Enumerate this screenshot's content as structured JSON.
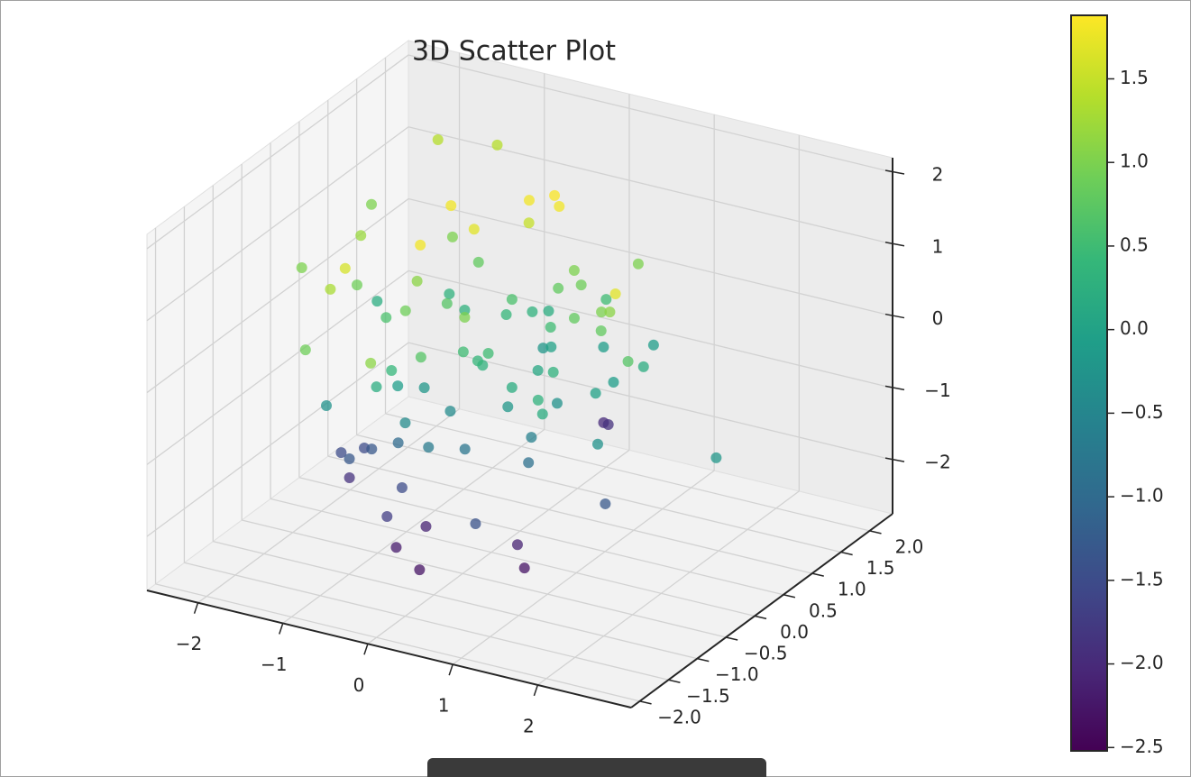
{
  "chart_data": {
    "type": "scatter3d",
    "title": "3D Scatter Plot",
    "x": [
      -1.84,
      -1.25,
      0.04,
      0.25,
      0.38,
      -0.59,
      -2.0,
      0.05,
      -0.19,
      -1.55,
      -0.89,
      -0.39,
      -1.86,
      -0.95,
      -0.53,
      1.08,
      0.59,
      -0.59,
      -1.09,
      -1.25,
      0.49,
      0.74,
      1.84,
      -0.84,
      -1.48,
      0.04,
      -0.4,
      0.79,
      -0.51,
      -0.51,
      -0.86,
      0.18,
      0.0,
      0.11,
      0.16,
      0.99,
      1.33,
      1.49,
      0.63,
      1.38,
      -0.93,
      0.15,
      0.39,
      0.21,
      0.44,
      0.01,
      0.82,
      1.24,
      -0.02,
      0.3,
      0.31,
      1.9,
      1.67,
      -0.35,
      0.69,
      1.02,
      -0.46,
      -0.54,
      -0.37,
      0.75,
      1.33,
      -1.11,
      1.22,
      0.91,
      1.39,
      -0.03,
      0.6,
      1.34,
      -0.29,
      0.09,
      0.24,
      0.83,
      -0.63,
      -0.05,
      0.21,
      1.76,
      3.06,
      -1.45,
      -1.3,
      -1.05,
      -1.13,
      0.85,
      -1.42,
      -0.49,
      1.68,
      -0.45,
      -0.33,
      0.68,
      -0.43,
      0.7,
      -0.04,
      0.87
    ],
    "y": [
      1.79,
      1.95,
      0.6,
      0.73,
      0.62,
      0.17,
      0.87,
      0.58,
      -0.02,
      0.02,
      0.64,
      -0.66,
      -0.55,
      -1.14,
      0.56,
      0.96,
      0.57,
      -0.42,
      -1.19,
      -0.49,
      0.44,
      0.47,
      -0.56,
      0.51,
      0.2,
      0.3,
      -0.18,
      0.83,
      0.29,
      -0.74,
      -0.56,
      -0.73,
      0.26,
      0.55,
      0.76,
      -0.02,
      -0.05,
      -0.14,
      0.1,
      -0.13,
      -1.86,
      -0.71,
      -0.63,
      0.59,
      0.39,
      -1.24,
      0.74,
      0.99,
      -2.07,
      -0.68,
      -0.61,
      -0.43,
      0.18,
      -1.22,
      -0.21,
      -0.43,
      -1.32,
      -0.83,
      -0.62,
      -0.75,
      0.16,
      -1.23,
      -0.99,
      -0.2,
      -0.24,
      -0.67,
      -0.6,
      -1.09,
      -1.07,
      1.82,
      1.68,
      -0.53,
      -0.69,
      -1.02,
      -0.77,
      -0.75,
      -0.61,
      -0.47,
      -0.29,
      -0.53,
      -0.8,
      -0.61,
      -0.37,
      -0.83,
      -0.5,
      -1.15,
      -0.65,
      -1.28,
      -1.02,
      -0.58,
      -1.19,
      -0.71
    ],
    "z": [
      1.4,
      1.4,
      1.8,
      1.85,
      1.8,
      1.8,
      1.0,
      1.5,
      1.7,
      1.2,
      1.0,
      1.8,
      1.0,
      1.6,
      0.8,
      1.0,
      1.0,
      1.1,
      1.3,
      0.9,
      0.8,
      0.9,
      1.7,
      0.3,
      0.2,
      0.6,
      0.7,
      0.5,
      0.3,
      0.9,
      0.6,
      1.0,
      0.4,
      0.3,
      0.2,
      0.8,
      1.0,
      1.1,
      0.5,
      0.8,
      0.9,
      0.5,
      0.5,
      -0.2,
      0.0,
      0.7,
      -0.1,
      -0.1,
      1.1,
      0.4,
      0.3,
      0.7,
      0.2,
      0.4,
      0.1,
      0.3,
      0.2,
      -0.1,
      -0.2,
      0.2,
      -0.1,
      -0.3,
      0.3,
      -0.3,
      0.0,
      -0.4,
      -0.2,
      0.2,
      -0.4,
      -2.0,
      -1.9,
      -0.6,
      -1.0,
      -0.7,
      -0.8,
      -0.3,
      -0.2,
      -1.5,
      -1.5,
      -1.3,
      -1.3,
      -0.9,
      -1.9,
      -1.5,
      -1.3,
      -1.7,
      -2.1,
      -1.4,
      -2.2,
      -2.1,
      -2.3,
      -2.3
    ],
    "xlim": [
      -2.6,
      3.1
    ],
    "ylim": [
      -2.15,
      2.4
    ],
    "zlim": [
      -2.75,
      2.2
    ],
    "xticks": [
      {
        "value": -2,
        "label": "−2"
      },
      {
        "value": -1,
        "label": "−1"
      },
      0,
      1,
      2
    ],
    "yticks": [
      {
        "value": -2,
        "label": "−2.0"
      },
      {
        "value": -1.5,
        "label": "−1.5"
      },
      {
        "value": -1,
        "label": "−1.0"
      },
      {
        "value": -0.5,
        "label": "−0.5"
      },
      {
        "value": 0,
        "label": "0.0"
      },
      0.5,
      {
        "value": 1,
        "label": "1.0"
      },
      1.5,
      {
        "value": 2,
        "label": "2.0"
      }
    ],
    "zticks": [
      {
        "value": -2,
        "label": "−2"
      },
      {
        "value": -1,
        "label": "−1"
      },
      0,
      1,
      2
    ],
    "grid": true,
    "colorbar": {
      "clim": [
        -2.52,
        1.88
      ],
      "ticks": [
        {
          "value": -2.5,
          "label": "−2.5"
        },
        {
          "value": -2,
          "label": "−2.0"
        },
        {
          "value": -1.5,
          "label": "−1.5"
        },
        {
          "value": -1,
          "label": "−1.0"
        },
        {
          "value": -0.5,
          "label": "−0.5"
        },
        {
          "value": 0,
          "label": "0.0"
        },
        0.5,
        {
          "value": 1,
          "label": "1.0"
        },
        1.5
      ],
      "colormap": [
        "#440154",
        "#482878",
        "#3e4989",
        "#31688e",
        "#26828e",
        "#1f9e89",
        "#35b779",
        "#6ece58",
        "#b5de2b",
        "#fde725"
      ]
    }
  }
}
